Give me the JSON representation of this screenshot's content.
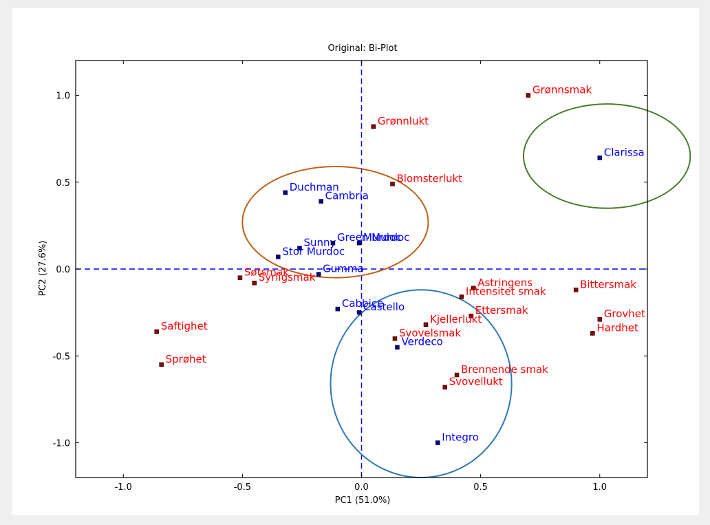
{
  "chart_data": {
    "type": "scatter",
    "title": "Original: Bi-Plot",
    "xlabel": "PC1 (51.0%)",
    "ylabel": "PC2 (27.6%)",
    "xlim": [
      -1.2,
      1.2
    ],
    "ylim": [
      -1.2,
      1.2
    ],
    "xticks": [
      -1.0,
      -0.5,
      0.0,
      0.5,
      1.0
    ],
    "yticks": [
      -1.0,
      -0.5,
      0.0,
      0.5,
      1.0
    ],
    "xtick_labels": [
      "-1.0",
      "-0.5",
      "0.0",
      "0.5",
      "1.0"
    ],
    "ytick_labels": [
      "-1.0",
      "-0.5",
      "0.0",
      "0.5",
      "1.0"
    ],
    "grid": false,
    "colors": {
      "samples": "#0000ff",
      "attributes": "#ff0000",
      "marker_samples": "#00008b",
      "marker_attributes": "#8b0000",
      "zero_lines": "#0000ff",
      "ellipse_orange": "#c0601a",
      "ellipse_green": "#4a7a2a",
      "ellipse_blue": "#2f78b6"
    },
    "series": [
      {
        "name": "samples",
        "points": [
          {
            "label": "Clarissa",
            "x": 1.0,
            "y": 0.64
          },
          {
            "label": "Duchman",
            "x": -0.32,
            "y": 0.44
          },
          {
            "label": "Cambria",
            "x": -0.17,
            "y": 0.39
          },
          {
            "label": "Sunny",
            "x": -0.26,
            "y": 0.12
          },
          {
            "label": "Green Murdoc",
            "x": -0.12,
            "y": 0.15
          },
          {
            "label": "Murdoc",
            "x": -0.01,
            "y": 0.15
          },
          {
            "label": "Stor Murdoc",
            "x": -0.35,
            "y": 0.07
          },
          {
            "label": "Gumma",
            "x": -0.18,
            "y": -0.03
          },
          {
            "label": "Cabbice",
            "x": -0.1,
            "y": -0.23
          },
          {
            "label": "Castello",
            "x": -0.01,
            "y": -0.25
          },
          {
            "label": "Verdeco",
            "x": 0.15,
            "y": -0.45
          },
          {
            "label": "Integro",
            "x": 0.32,
            "y": -1.0
          }
        ]
      },
      {
        "name": "attributes",
        "points": [
          {
            "label": "Grønnsmak",
            "x": 0.7,
            "y": 1.0
          },
          {
            "label": "Grønnlukt",
            "x": 0.05,
            "y": 0.82
          },
          {
            "label": "Blomsterlukt",
            "x": 0.13,
            "y": 0.49
          },
          {
            "label": "Søtsmak",
            "x": -0.51,
            "y": -0.05
          },
          {
            "label": "Syrligsmak",
            "x": -0.45,
            "y": -0.08
          },
          {
            "label": "Astringens",
            "x": 0.47,
            "y": -0.11
          },
          {
            "label": "Intensitet smak",
            "x": 0.42,
            "y": -0.16
          },
          {
            "label": "Bittersmak",
            "x": 0.9,
            "y": -0.12
          },
          {
            "label": "Ettersmak",
            "x": 0.46,
            "y": -0.27
          },
          {
            "label": "Kjellerlukt",
            "x": 0.27,
            "y": -0.32
          },
          {
            "label": "Svovelsmak",
            "x": 0.14,
            "y": -0.4
          },
          {
            "label": "Grovhet",
            "x": 1.0,
            "y": -0.29
          },
          {
            "label": "Hardhet",
            "x": 0.97,
            "y": -0.37
          },
          {
            "label": "Saftighet",
            "x": -0.86,
            "y": -0.36
          },
          {
            "label": "Sprøhet",
            "x": -0.84,
            "y": -0.55
          },
          {
            "label": "Brennende smak",
            "x": 0.4,
            "y": -0.61
          },
          {
            "label": "Svovellukt",
            "x": 0.35,
            "y": -0.68
          }
        ]
      }
    ],
    "ellipses": [
      {
        "name": "orange",
        "cx": -0.11,
        "cy": 0.27,
        "rx": 0.39,
        "ry": 0.64
      },
      {
        "name": "green",
        "cx": 1.03,
        "cy": 0.65,
        "rx": 0.35,
        "ry": 0.6
      },
      {
        "name": "blue",
        "cx": 0.25,
        "cy": -0.66,
        "rx": 0.38,
        "ry": 1.08
      }
    ]
  }
}
